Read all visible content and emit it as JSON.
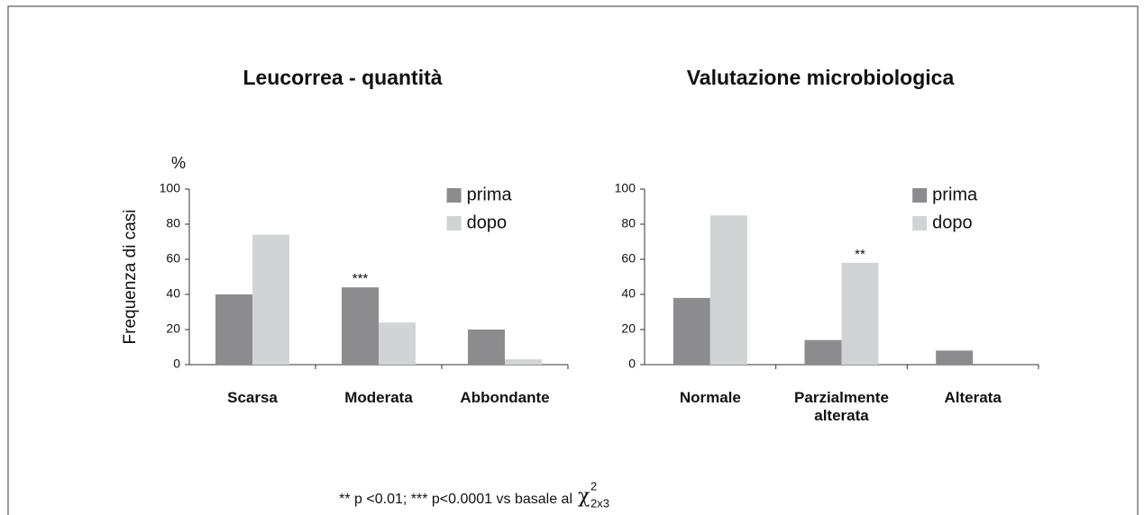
{
  "chart_data": [
    {
      "type": "bar",
      "title": "Leucorrea - quantità",
      "y_unit": "%",
      "ylabel": "Frequenza di casi",
      "categories": [
        "Scarsa",
        "Moderata",
        "Abbondante"
      ],
      "series": [
        {
          "name": "prima",
          "color": "#8c8c8e",
          "values": [
            40,
            44,
            20
          ]
        },
        {
          "name": "dopo",
          "color": "#d2d3d5",
          "values": [
            74,
            24,
            3
          ]
        }
      ],
      "ylim": [
        0,
        100
      ],
      "yticks": [
        0,
        20,
        40,
        60,
        80,
        100
      ],
      "annotations": [
        "***"
      ]
    },
    {
      "type": "bar",
      "title": "Valutazione microbiologica",
      "categories": [
        "Normale",
        "Parzialmente alterata",
        "Alterata"
      ],
      "series": [
        {
          "name": "prima",
          "color": "#8c8c8e",
          "values": [
            38,
            14,
            8
          ]
        },
        {
          "name": "dopo",
          "color": "#d2d3d5",
          "values": [
            85,
            58,
            0
          ]
        }
      ],
      "ylim": [
        0,
        100
      ],
      "yticks": [
        0,
        20,
        40,
        60,
        80,
        100
      ],
      "annotations": [
        "**"
      ]
    }
  ],
  "footnote": {
    "text": "** p <0.01; *** p<0.0001 vs basale al",
    "symbol": "χ",
    "sup": "2",
    "sub": "2x3"
  }
}
